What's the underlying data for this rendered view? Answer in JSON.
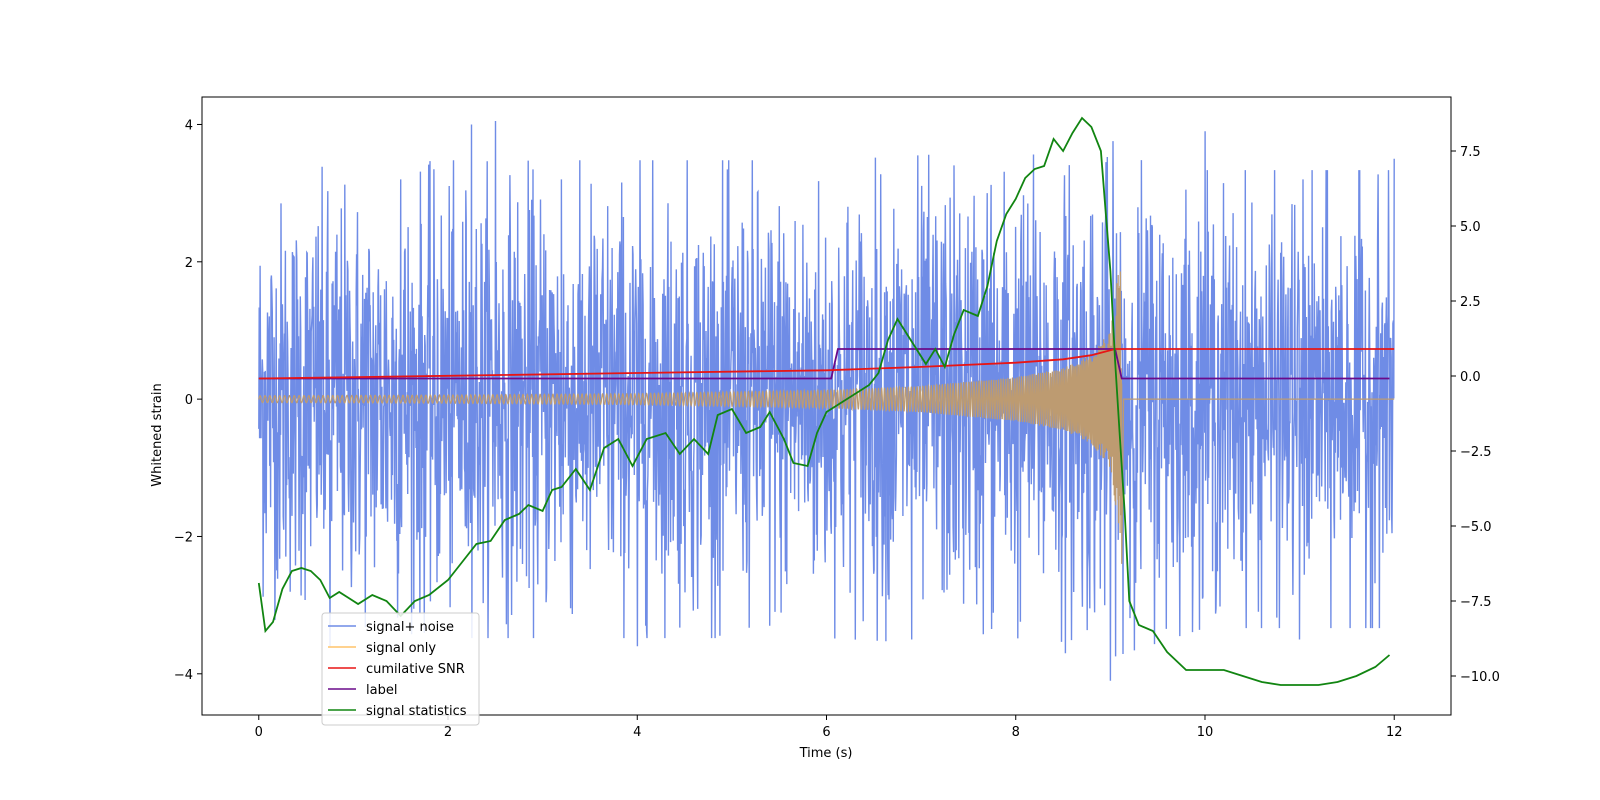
{
  "chart_data": {
    "type": "line",
    "xlabel": "Time (s)",
    "ylabel": "Whitened strain",
    "ylabel_right": "",
    "xlim": [
      -0.6,
      12.6
    ],
    "ylim": [
      -4.6,
      4.4
    ],
    "ylim_right": [
      -11.3,
      9.3
    ],
    "x_ticks": [
      0,
      2,
      4,
      6,
      8,
      10,
      12
    ],
    "x_tick_labels": [
      "0",
      "2",
      "4",
      "6",
      "8",
      "10",
      "12"
    ],
    "y_ticks": [
      -4,
      -2,
      0,
      2,
      4
    ],
    "y_tick_labels": [
      "−4",
      "−2",
      "0",
      "2",
      "4"
    ],
    "y_right_ticks": [
      -10.0,
      -7.5,
      -5.0,
      -2.5,
      0.0,
      2.5,
      5.0,
      7.5
    ],
    "y_right_tick_labels": [
      "−10.0",
      "−7.5",
      "−5.0",
      "−2.5",
      "0.0",
      "2.5",
      "5.0",
      "7.5"
    ],
    "grid": false,
    "legend_position": "lower-left",
    "legend": [
      "signal+ noise",
      "signal only",
      "cumilative SNR",
      "label",
      "signal statistics"
    ],
    "colors": {
      "noise": "#6f8ce6",
      "signal": "#ffc46a",
      "overlap": "#bd9b71",
      "snr": "#e81515",
      "label": "#6a0a8a",
      "stats": "#118511"
    },
    "series": [
      {
        "name": "signal+ noise",
        "axis": "left",
        "description_envelope_upper": [
          [
            0,
            2.3
          ],
          [
            2,
            2.4
          ],
          [
            4,
            2.4
          ],
          [
            6,
            2.4
          ],
          [
            8,
            2.5
          ],
          [
            9,
            2.6
          ],
          [
            10,
            2.3
          ],
          [
            12,
            2.3
          ]
        ],
        "description_envelope_lower": [
          [
            0,
            -2.2
          ],
          [
            2,
            -2.4
          ],
          [
            4,
            -2.4
          ],
          [
            6,
            -2.4
          ],
          [
            8,
            -2.5
          ],
          [
            9,
            -2.6
          ],
          [
            10,
            -2.3
          ],
          [
            12,
            -2.3
          ]
        ],
        "spikes": [
          [
            0.75,
            -3.6
          ],
          [
            2.25,
            4.0
          ],
          [
            2.5,
            4.05
          ],
          [
            4.0,
            -3.6
          ],
          [
            5.4,
            -3.3
          ],
          [
            6.9,
            -3.5
          ],
          [
            9.0,
            -4.1
          ],
          [
            10.0,
            3.9
          ],
          [
            11.0,
            -3.5
          ],
          [
            12.0,
            3.5
          ],
          [
            1.5,
            3.2
          ],
          [
            3.2,
            3.2
          ],
          [
            7.7,
            3.0
          ]
        ]
      },
      {
        "name": "signal only",
        "axis": "left",
        "amplitude_envelope": [
          [
            0,
            0.05
          ],
          [
            2,
            0.06
          ],
          [
            4,
            0.08
          ],
          [
            6,
            0.13
          ],
          [
            7,
            0.19
          ],
          [
            8,
            0.32
          ],
          [
            8.5,
            0.45
          ],
          [
            8.8,
            0.65
          ],
          [
            9.0,
            1.0
          ],
          [
            9.1,
            2.0
          ]
        ],
        "after_merger_value": 0.0
      },
      {
        "name": "cumilative SNR",
        "axis": "left",
        "points": [
          [
            0,
            0.3
          ],
          [
            2,
            0.34
          ],
          [
            4,
            0.38
          ],
          [
            6,
            0.42
          ],
          [
            7,
            0.47
          ],
          [
            8,
            0.53
          ],
          [
            8.5,
            0.58
          ],
          [
            8.8,
            0.64
          ],
          [
            9.05,
            0.73
          ],
          [
            12,
            0.73
          ]
        ]
      },
      {
        "name": "label",
        "axis": "left",
        "points": [
          [
            0,
            0.3
          ],
          [
            6.05,
            0.3
          ],
          [
            6.12,
            0.73
          ],
          [
            9.05,
            0.73
          ],
          [
            9.12,
            0.3
          ],
          [
            11.95,
            0.3
          ]
        ]
      },
      {
        "name": "signal statistics",
        "axis": "right",
        "points": [
          [
            0,
            -6.9
          ],
          [
            0.07,
            -8.5
          ],
          [
            0.15,
            -8.2
          ],
          [
            0.25,
            -7.1
          ],
          [
            0.35,
            -6.5
          ],
          [
            0.45,
            -6.4
          ],
          [
            0.55,
            -6.5
          ],
          [
            0.65,
            -6.8
          ],
          [
            0.75,
            -7.4
          ],
          [
            0.85,
            -7.2
          ],
          [
            0.95,
            -7.4
          ],
          [
            1.05,
            -7.6
          ],
          [
            1.2,
            -7.3
          ],
          [
            1.35,
            -7.5
          ],
          [
            1.5,
            -8.0
          ],
          [
            1.65,
            -7.5
          ],
          [
            1.8,
            -7.3
          ],
          [
            2.0,
            -6.8
          ],
          [
            2.15,
            -6.2
          ],
          [
            2.3,
            -5.6
          ],
          [
            2.45,
            -5.5
          ],
          [
            2.6,
            -4.8
          ],
          [
            2.75,
            -4.6
          ],
          [
            2.85,
            -4.3
          ],
          [
            3.0,
            -4.5
          ],
          [
            3.1,
            -3.8
          ],
          [
            3.2,
            -3.7
          ],
          [
            3.35,
            -3.1
          ],
          [
            3.5,
            -3.8
          ],
          [
            3.65,
            -2.4
          ],
          [
            3.8,
            -2.1
          ],
          [
            3.95,
            -3.0
          ],
          [
            4.1,
            -2.1
          ],
          [
            4.3,
            -1.9
          ],
          [
            4.45,
            -2.6
          ],
          [
            4.6,
            -2.1
          ],
          [
            4.75,
            -2.6
          ],
          [
            4.85,
            -1.3
          ],
          [
            5.0,
            -1.1
          ],
          [
            5.15,
            -1.9
          ],
          [
            5.3,
            -1.7
          ],
          [
            5.4,
            -1.2
          ],
          [
            5.55,
            -2.1
          ],
          [
            5.65,
            -2.9
          ],
          [
            5.8,
            -3.0
          ],
          [
            5.9,
            -1.9
          ],
          [
            6.0,
            -1.2
          ],
          [
            6.15,
            -0.9
          ],
          [
            6.3,
            -0.6
          ],
          [
            6.45,
            -0.3
          ],
          [
            6.55,
            0.1
          ],
          [
            6.65,
            1.2
          ],
          [
            6.75,
            1.9
          ],
          [
            6.85,
            1.4
          ],
          [
            6.95,
            0.9
          ],
          [
            7.05,
            0.4
          ],
          [
            7.15,
            0.9
          ],
          [
            7.25,
            0.3
          ],
          [
            7.35,
            1.4
          ],
          [
            7.45,
            2.2
          ],
          [
            7.6,
            2.0
          ],
          [
            7.7,
            3.0
          ],
          [
            7.8,
            4.5
          ],
          [
            7.9,
            5.4
          ],
          [
            8.0,
            5.9
          ],
          [
            8.1,
            6.6
          ],
          [
            8.2,
            6.9
          ],
          [
            8.3,
            7.0
          ],
          [
            8.4,
            7.9
          ],
          [
            8.5,
            7.5
          ],
          [
            8.6,
            8.1
          ],
          [
            8.7,
            8.6
          ],
          [
            8.8,
            8.3
          ],
          [
            8.9,
            7.5
          ],
          [
            8.95,
            5.5
          ],
          [
            9.0,
            3.5
          ],
          [
            9.05,
            0.5
          ],
          [
            9.1,
            -2.0
          ],
          [
            9.15,
            -4.5
          ],
          [
            9.2,
            -7.5
          ],
          [
            9.3,
            -8.3
          ],
          [
            9.45,
            -8.5
          ],
          [
            9.6,
            -9.2
          ],
          [
            9.8,
            -9.8
          ],
          [
            10.0,
            -9.8
          ],
          [
            10.2,
            -9.8
          ],
          [
            10.4,
            -10.0
          ],
          [
            10.6,
            -10.2
          ],
          [
            10.8,
            -10.3
          ],
          [
            11.0,
            -10.3
          ],
          [
            11.2,
            -10.3
          ],
          [
            11.4,
            -10.2
          ],
          [
            11.6,
            -10.0
          ],
          [
            11.8,
            -9.7
          ],
          [
            11.95,
            -9.3
          ]
        ]
      }
    ]
  }
}
